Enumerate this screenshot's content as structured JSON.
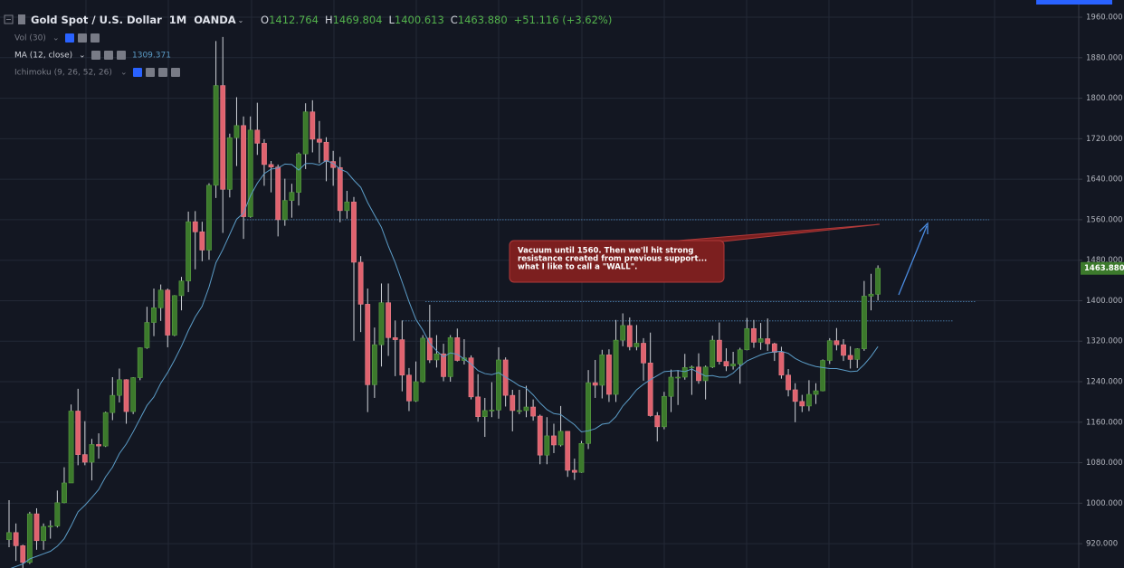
{
  "chart_data": {
    "type": "candlestick",
    "title": "Gold Spot / U.S. Dollar",
    "interval": "1M",
    "source": "OANDA",
    "ohlc_legend": [
      {
        "label": "O",
        "value": "1412.764"
      },
      {
        "label": "H",
        "value": "1469.804"
      },
      {
        "label": "L",
        "value": "1400.613"
      },
      {
        "label": "C",
        "value": "1463.880"
      }
    ],
    "change": "+51.116 (+3.62%)",
    "last_price_label": "1463.880",
    "up_color": "#3c7a2c",
    "down_color": "#e0636f",
    "wick_color": "#cfd2d8",
    "open": [
      928,
      942,
      916,
      883,
      979,
      926,
      954,
      955,
      1001,
      1040,
      1182,
      1096,
      1081,
      1116,
      1113,
      1179,
      1213,
      1244,
      1181,
      1248,
      1307,
      1357,
      1386,
      1421,
      1332,
      1410,
      1439,
      1556,
      1536,
      1500,
      1628,
      1825,
      1620,
      1722,
      1746,
      1566,
      1737,
      1711,
      1669,
      1664,
      1560,
      1598,
      1614,
      1690,
      1773,
      1719,
      1713,
      1675,
      1663,
      1578,
      1595,
      1476,
      1393,
      1234,
      1313,
      1396,
      1327,
      1323,
      1253,
      1202,
      1240,
      1326,
      1283,
      1295,
      1250,
      1327,
      1282,
      1287,
      1210,
      1171,
      1183,
      1184,
      1283,
      1213,
      1183,
      1183,
      1190,
      1172,
      1095,
      1133,
      1115,
      1142,
      1065,
      1061,
      1118,
      1238,
      1233,
      1293,
      1215,
      1322,
      1351,
      1309,
      1316,
      1277,
      1173,
      1151,
      1211,
      1249,
      1249,
      1268,
      1269,
      1242,
      1269,
      1322,
      1280,
      1271,
      1275,
      1303,
      1345,
      1318,
      1325,
      1315,
      1298,
      1253,
      1224,
      1201,
      1192,
      1215,
      1222,
      1282,
      1321,
      1313,
      1292,
      1284,
      1305,
      1409,
      1412.764
    ],
    "high": [
      1006,
      960,
      918,
      983,
      990,
      960,
      966,
      1025,
      1071,
      1195,
      1226,
      1162,
      1127,
      1138,
      1181,
      1249,
      1266,
      1245,
      1249,
      1308,
      1388,
      1424,
      1432,
      1424,
      1411,
      1447,
      1576,
      1577,
      1556,
      1632,
      1913,
      1921,
      1730,
      1802,
      1764,
      1764,
      1791,
      1719,
      1676,
      1669,
      1641,
      1631,
      1693,
      1790,
      1796,
      1755,
      1723,
      1696,
      1684,
      1617,
      1605,
      1488,
      1424,
      1347,
      1434,
      1434,
      1361,
      1361,
      1267,
      1280,
      1332,
      1392,
      1332,
      1315,
      1332,
      1345,
      1324,
      1292,
      1255,
      1208,
      1239,
      1308,
      1288,
      1224,
      1224,
      1232,
      1205,
      1175,
      1170,
      1157,
      1192,
      1142,
      1088,
      1123,
      1263,
      1283,
      1303,
      1304,
      1362,
      1375,
      1367,
      1352,
      1326,
      1337,
      1180,
      1220,
      1264,
      1263,
      1295,
      1272,
      1296,
      1272,
      1331,
      1357,
      1306,
      1299,
      1307,
      1366,
      1362,
      1356,
      1365,
      1317,
      1309,
      1265,
      1237,
      1214,
      1243,
      1237,
      1284,
      1326,
      1346,
      1324,
      1310,
      1306,
      1439,
      1453,
      1469.804
    ],
    "low": [
      913,
      886,
      866,
      880,
      908,
      908,
      930,
      952,
      1000,
      1040,
      1075,
      1075,
      1045,
      1088,
      1111,
      1164,
      1199,
      1157,
      1176,
      1243,
      1305,
      1330,
      1360,
      1308,
      1330,
      1381,
      1417,
      1462,
      1478,
      1481,
      1603,
      1534,
      1604,
      1666,
      1522,
      1564,
      1688,
      1627,
      1614,
      1527,
      1548,
      1564,
      1588,
      1660,
      1693,
      1672,
      1636,
      1627,
      1555,
      1562,
      1321,
      1338,
      1180,
      1208,
      1270,
      1291,
      1251,
      1221,
      1182,
      1200,
      1238,
      1277,
      1268,
      1241,
      1240,
      1280,
      1274,
      1205,
      1161,
      1131,
      1170,
      1167,
      1191,
      1142,
      1176,
      1170,
      1163,
      1077,
      1077,
      1099,
      1112,
      1052,
      1046,
      1060,
      1107,
      1208,
      1207,
      1200,
      1200,
      1310,
      1302,
      1302,
      1242,
      1171,
      1122,
      1146,
      1180,
      1194,
      1244,
      1214,
      1236,
      1205,
      1267,
      1274,
      1261,
      1264,
      1236,
      1302,
      1307,
      1303,
      1301,
      1281,
      1246,
      1211,
      1160,
      1180,
      1182,
      1196,
      1221,
      1275,
      1302,
      1281,
      1266,
      1267,
      1301,
      1381,
      1400.613
    ],
    "close": [
      942,
      916,
      883,
      979,
      926,
      954,
      955,
      1001,
      1040,
      1182,
      1096,
      1081,
      1116,
      1113,
      1179,
      1213,
      1244,
      1181,
      1248,
      1307,
      1357,
      1386,
      1421,
      1332,
      1410,
      1439,
      1556,
      1536,
      1500,
      1628,
      1825,
      1620,
      1722,
      1746,
      1566,
      1737,
      1711,
      1669,
      1664,
      1560,
      1598,
      1614,
      1690,
      1773,
      1719,
      1713,
      1675,
      1663,
      1578,
      1595,
      1476,
      1393,
      1234,
      1313,
      1396,
      1327,
      1323,
      1253,
      1202,
      1240,
      1326,
      1283,
      1295,
      1250,
      1327,
      1282,
      1287,
      1210,
      1171,
      1183,
      1184,
      1283,
      1213,
      1183,
      1183,
      1190,
      1172,
      1095,
      1133,
      1115,
      1142,
      1065,
      1061,
      1118,
      1238,
      1233,
      1293,
      1215,
      1322,
      1351,
      1309,
      1316,
      1277,
      1173,
      1151,
      1211,
      1249,
      1249,
      1268,
      1269,
      1242,
      1269,
      1322,
      1280,
      1271,
      1275,
      1303,
      1345,
      1318,
      1325,
      1315,
      1298,
      1253,
      1224,
      1201,
      1192,
      1215,
      1222,
      1282,
      1321,
      1313,
      1292,
      1284,
      1305,
      1409,
      1413,
      1463.88
    ],
    "indicators": [
      {
        "name": "Vol (30)"
      },
      {
        "name": "MA (12, close)",
        "value_label": "1309.371",
        "color": "#5b9cc7",
        "values": [
          870,
          875,
          880,
          890,
          895,
          900,
          905,
          915,
          930,
          955,
          983,
          996,
          1011,
          1027,
          1052,
          1071,
          1098,
          1117,
          1141,
          1167,
          1193,
          1210,
          1237,
          1258,
          1283,
          1310,
          1341,
          1368,
          1389,
          1427,
          1475,
          1501,
          1531,
          1561,
          1573,
          1607,
          1632,
          1651,
          1660,
          1662,
          1670,
          1669,
          1658,
          1671,
          1671,
          1668,
          1677,
          1671,
          1660,
          1654,
          1638,
          1624,
          1594,
          1569,
          1545,
          1508,
          1475,
          1437,
          1398,
          1363,
          1342,
          1316,
          1301,
          1289,
          1297,
          1294,
          1285,
          1275,
          1262,
          1256,
          1254,
          1258,
          1249,
          1241,
          1232,
          1227,
          1214,
          1198,
          1185,
          1177,
          1175,
          1165,
          1155,
          1141,
          1143,
          1147,
          1156,
          1158,
          1171,
          1192,
          1207,
          1224,
          1235,
          1244,
          1252,
          1260,
          1261,
          1262,
          1260,
          1265,
          1258,
          1251,
          1252,
          1249,
          1249,
          1257,
          1270,
          1281,
          1287,
          1293,
          1297,
          1299,
          1300,
          1296,
          1286,
          1279,
          1274,
          1270,
          1268,
          1266,
          1266,
          1263,
          1260,
          1261,
          1274,
          1290,
          1309.371
        ]
      },
      {
        "name": "Ichimoku (9, 26, 52, 26)"
      }
    ],
    "levels": [
      1560,
      1398,
      1360
    ],
    "annotation": [
      "Vacuum until 1560. Then we'll hit strong",
      "resistance created from previous support...",
      "what I like to call a \"WALL\"."
    ],
    "ylim": [
      872,
      1994
    ],
    "yticks": [
      {
        "value": 920,
        "label": "920.000"
      },
      {
        "value": 1000,
        "label": "1000.000"
      },
      {
        "value": 1080,
        "label": "1080.000"
      },
      {
        "value": 1160,
        "label": "1160.000"
      },
      {
        "value": 1240,
        "label": "1240.000"
      },
      {
        "value": 1320,
        "label": "1320.000"
      },
      {
        "value": 1400,
        "label": "1400.000"
      },
      {
        "value": 1480,
        "label": "1480.000"
      },
      {
        "value": 1560,
        "label": "1560.000"
      },
      {
        "value": 1640,
        "label": "1640.000"
      },
      {
        "value": 1720,
        "label": "1720.000"
      },
      {
        "value": 1800,
        "label": "1800.000"
      },
      {
        "value": 1880,
        "label": "1880.000"
      },
      {
        "value": 1960,
        "label": "1960.000"
      }
    ],
    "grid": true
  }
}
